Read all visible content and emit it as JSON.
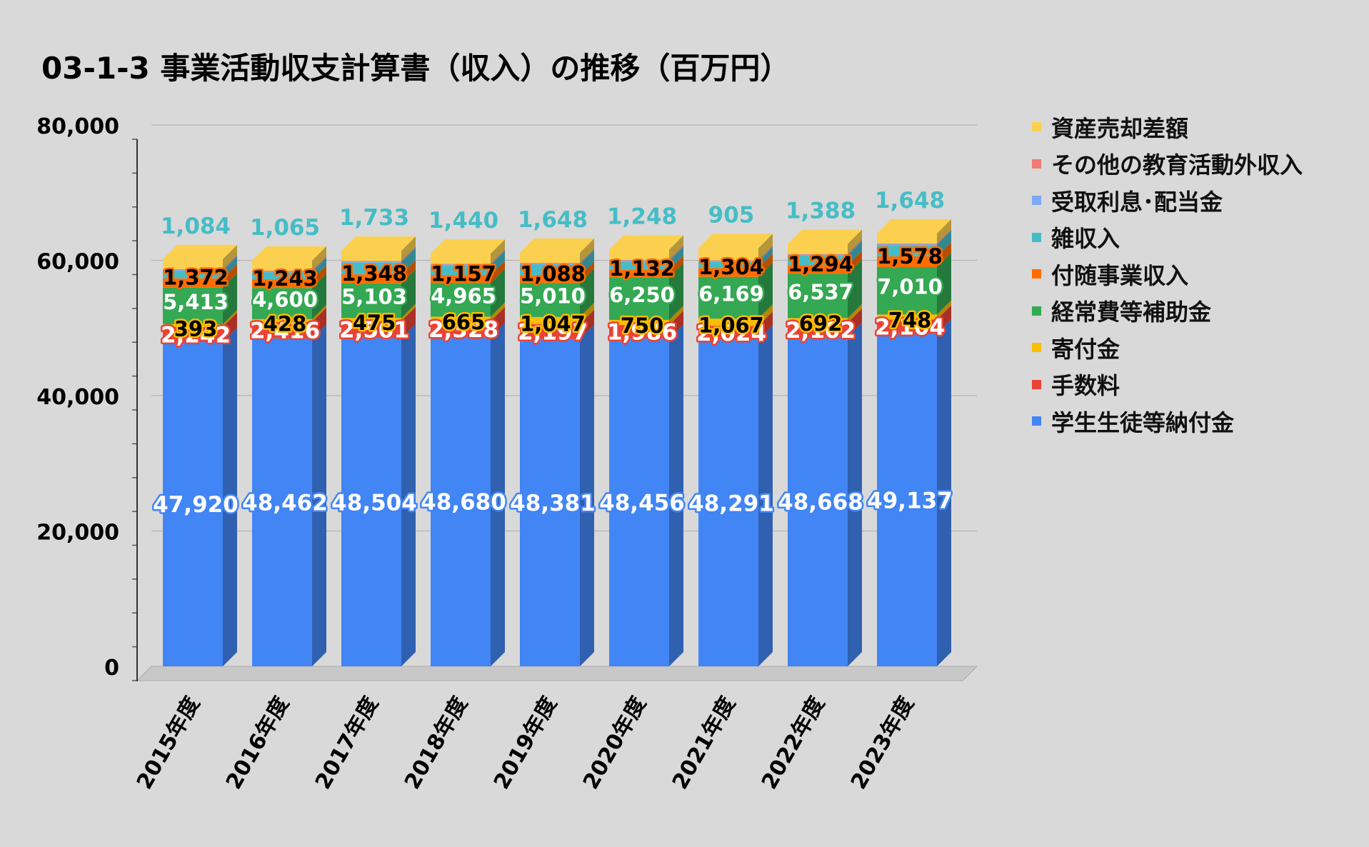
{
  "title": "03-1-3 事業活動収支計算書（収入）の推移（百万円）",
  "chart_data": {
    "type": "bar",
    "stacked": true,
    "three_d": true,
    "title": "03-1-3 事業活動収支計算書（収入）の推移（百万円）",
    "xlabel": "",
    "ylabel": "",
    "ylim": [
      0,
      80000
    ],
    "y_ticks": [
      "0",
      "20,000",
      "40,000",
      "60,000",
      "80,000"
    ],
    "grid": true,
    "legend_position": "right",
    "categories": [
      "2015年度",
      "2016年度",
      "2017年度",
      "2018年度",
      "2019年度",
      "2020年度",
      "2021年度",
      "2022年度",
      "2023年度"
    ],
    "series": [
      {
        "name": "学生生徒等納付金",
        "color": "#4285f4",
        "values": [
          47920,
          48462,
          48504,
          48680,
          48381,
          48456,
          48291,
          48668,
          49137
        ],
        "labels": [
          "47,920",
          "48,462",
          "48,504",
          "48,680",
          "48,381",
          "48,456",
          "48,291",
          "48,668",
          "49,137"
        ]
      },
      {
        "name": "手数料",
        "color": "#ea4335",
        "values": [
          2242,
          2416,
          2501,
          2328,
          2197,
          1986,
          2024,
          2102,
          2104
        ],
        "labels": [
          "2,242",
          "2,416",
          "2,501",
          "2,328",
          "2,197",
          "1,986",
          "2,024",
          "2,102",
          "2,104"
        ]
      },
      {
        "name": "寄付金",
        "color": "#fbbc04",
        "values": [
          393,
          428,
          475,
          665,
          1047,
          750,
          1067,
          692,
          748
        ],
        "labels": [
          "393",
          "428",
          "475",
          "665",
          "1,047",
          "750",
          "1,067",
          "692",
          "748"
        ]
      },
      {
        "name": "経常費等補助金",
        "color": "#34a853",
        "values": [
          5413,
          4600,
          5103,
          4965,
          5010,
          6250,
          6169,
          6537,
          7010
        ],
        "labels": [
          "5,413",
          "4,600",
          "5,103",
          "4,965",
          "5,010",
          "6,250",
          "6,169",
          "6,537",
          "7,010"
        ]
      },
      {
        "name": "付随事業収入",
        "color": "#ff6d01",
        "values": [
          1372,
          1243,
          1348,
          1157,
          1088,
          1132,
          1304,
          1294,
          1578
        ],
        "labels": [
          "1,372",
          "1,243",
          "1,348",
          "1,157",
          "1,088",
          "1,132",
          "1,304",
          "1,294",
          "1,578"
        ]
      },
      {
        "name": "雑収入",
        "color": "#46bdc6",
        "values": [
          1084,
          1065,
          1733,
          1440,
          1648,
          1248,
          905,
          1388,
          1648
        ],
        "labels": [
          "1,084",
          "1,065",
          "1,733",
          "1,440",
          "1,648",
          "1,248",
          "905",
          "1,388",
          "1,648"
        ]
      },
      {
        "name": "受取利息･配当金",
        "color": "#7baaf7",
        "values": [
          150,
          150,
          150,
          150,
          150,
          150,
          150,
          150,
          150
        ],
        "labels": []
      },
      {
        "name": "その他の教育活動外収入",
        "color": "#f07b72",
        "values": [
          100,
          100,
          100,
          100,
          100,
          100,
          100,
          100,
          100
        ],
        "labels": []
      },
      {
        "name": "資産売却差額",
        "color": "#fcd04f",
        "values": [
          1500,
          1500,
          1500,
          1500,
          1500,
          1500,
          1800,
          1500,
          1500
        ],
        "labels": []
      }
    ]
  },
  "legend_order": [
    "資産売却差額",
    "その他の教育活動外収入",
    "受取利息･配当金",
    "雑収入",
    "付随事業収入",
    "経常費等補助金",
    "寄付金",
    "手数料",
    "学生生徒等納付金"
  ]
}
